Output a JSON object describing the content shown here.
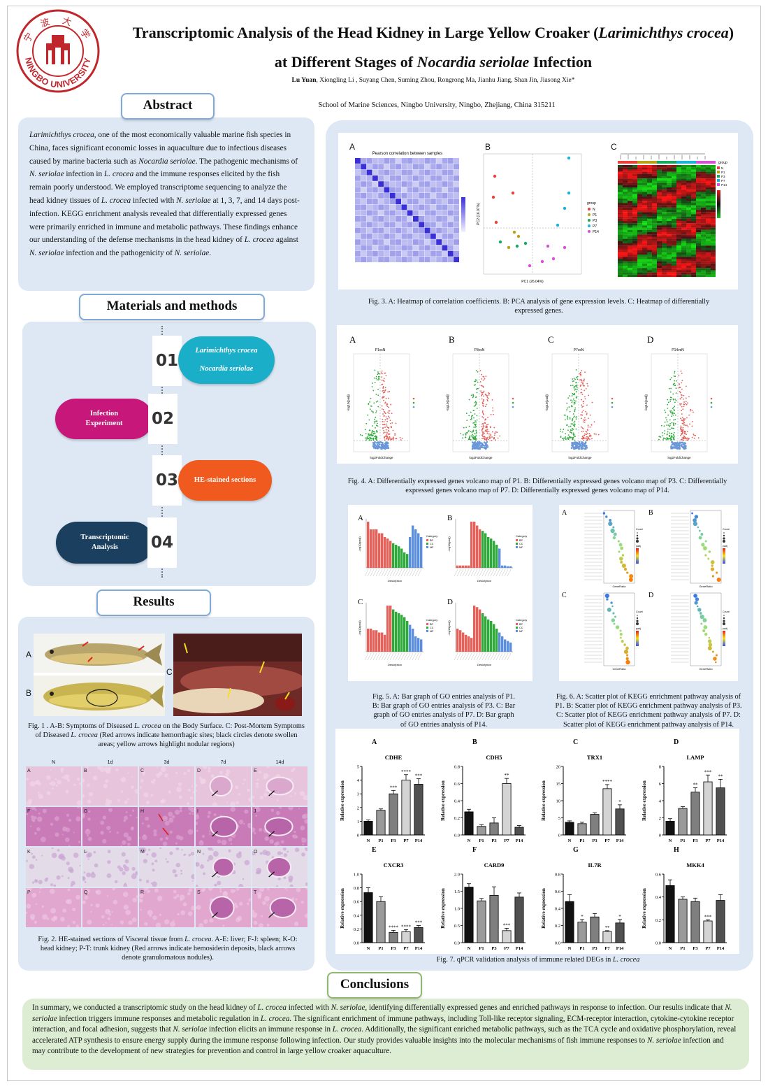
{
  "header": {
    "title_line1_a": "Transcriptomic Analysis of the Head Kidney in Large Yellow Croaker (",
    "title_line1_italic": "Larimichthys crocea",
    "title_line1_b": ")",
    "title_line2_a": "at Different Stages of ",
    "title_line2_italic": "Nocardia seriolae",
    "title_line2_b": " Infection",
    "first_author": "Lu Yuan",
    "other_authors": ", Xiongling Li , Suyang Chen, Suming Zhou, Rongrong Ma, Jianhu Jiang, Shan Jin, Jiasong Xie*",
    "affiliation": "School of Marine Sciences, Ningbo University, Ningbo, Zhejiang, China 315211",
    "logo_text": "NINGBO UNIVERSITY",
    "logo_chinese": "宁 波 大 学"
  },
  "sections": {
    "abstract": "Abstract",
    "methods": "Materials and methods",
    "results": "Results",
    "conclusions": "Conclusions"
  },
  "abstract": {
    "p1_italic": "Larimichthys crocea",
    "p1": ", one of the most economically valuable marine fish species in China, faces significant economic losses in aquaculture due to infectious diseases caused by marine bacteria such as ",
    "p2_italic": "Nocardia seriolae",
    "p2": ". The pathogenic mechanisms of ",
    "p3_italic": "N. seriolae",
    "p3": " infection in ",
    "p4_italic": "L. crocea",
    "p4": " and the immune responses elicited by the fish remain poorly understood. We employed transcriptome sequencing to analyze the head kidney tissues of ",
    "p5_italic": "L. crocea",
    "p5": " infected with ",
    "p6_italic": "N. seriolae",
    "p6": " at 1, 3, 7, and 14 days post-infection. KEGG enrichment analysis revealed that differentially expressed genes were primarily enriched in immune and metabolic pathways. These findings enhance our understanding of the defense mechanisms in the head kidney of ",
    "p7_italic": "L. crocea",
    "p7": " against ",
    "p8_italic": "N. seriolae",
    "p8": " infection and the pathogenicity of ",
    "p9_italic": "N. seriolae",
    "p9": "."
  },
  "methods": {
    "steps": [
      {
        "num": "01",
        "label_a": "Larimichthys crocea",
        "label_b": "Nocardia seriolae",
        "color": "#1aaec8"
      },
      {
        "num": "02",
        "label_a": "Infection",
        "label_b": "Experiment",
        "color": "#c8177a"
      },
      {
        "num": "03",
        "label_a": "HE-stained sections",
        "label_b": "",
        "color": "#f05a1e"
      },
      {
        "num": "04",
        "label_a": "Transcriptomic",
        "label_b": "Analysis",
        "color": "#1b3f5e"
      }
    ]
  },
  "fig1": {
    "labels": [
      "A",
      "B",
      "C"
    ],
    "caption_a": "Fig. 1 . A-B: Symptoms of Diseased ",
    "caption_i1": "L. crocea",
    "caption_b": " on the Body Surface.  C: Post-Mortem Symptoms of Diseased ",
    "caption_i2": "L. crocea",
    "caption_c": " (Red arrows indicate hemorrhagic sites; black circles denote swollen areas; yellow arrows highlight nodular regions)"
  },
  "fig2": {
    "col_headers": [
      "N",
      "1d",
      "3d",
      "7d",
      "14d"
    ],
    "cell_labels": [
      "A",
      "B",
      "C",
      "D",
      "E",
      "F",
      "G",
      "H",
      "I",
      "J",
      "K",
      "L",
      "M",
      "N",
      "O",
      "P",
      "Q",
      "R",
      "S",
      "T"
    ],
    "caption_a": "Fig. 2. HE-stained sections of Visceral tissue from ",
    "caption_i": "L. crocea",
    "caption_b": ".  A-E: liver;  F-J: spleen;  K-O: head kidney;  P-T: trunk kidney (Red arrows indicate hemosiderin deposits, black arrows denote granulomatous nodules)."
  },
  "fig3": {
    "labels": [
      "A",
      "B",
      "C"
    ],
    "heat_title": "Pearson correlation between samples",
    "pca_xlabel": "PC1 (26.04%)",
    "pca_ylabel": "PC2 (16.07%)",
    "legend_title": "group",
    "groups": [
      "N",
      "P1",
      "P3",
      "P7",
      "P14"
    ],
    "caption": "Fig. 3. A: Heatmap of correlation coefficients. B: PCA analysis of gene expression levels. C: Heatmap of differentially expressed genes."
  },
  "fig4": {
    "labels": [
      "A",
      "B",
      "C",
      "D"
    ],
    "subtitles": [
      "P1vsN",
      "P3vsN",
      "P7vsN",
      "P14vsN"
    ],
    "xlabel": "log2FoldChange",
    "ylabel": "-log10(padj)",
    "caption": "Fig. 4. A: Differentially expressed genes volcano map of P1. B: Differentially expressed genes volcano map of P3. C: Differentially expressed genes volcano map of P7. D: Differentially expressed genes volcano map of P14."
  },
  "fig5": {
    "labels": [
      "A",
      "B",
      "C",
      "D"
    ],
    "xlabel": "Description",
    "ylabel": "-log10(padj)",
    "legend_title": "Category",
    "categories": [
      "BP",
      "CC",
      "MF"
    ],
    "caption": "Fig. 5. A: Bar graph of GO entries analysis of P1. B: Bar graph of GO entries analysis of P3. C: Bar graph of GO entries analysis of P7. D: Bar graph of GO entries analysis of P14."
  },
  "fig6": {
    "labels": [
      "A",
      "B",
      "C",
      "D"
    ],
    "xlabel": "GeneRatio",
    "legend_count": "Count",
    "legend_padj": "padj",
    "caption": "Fig. 6. A: Scatter plot of KEGG enrichment pathway analysis of P1. B: Scatter plot of KEGG enrichment pathway analysis of P3. C: Scatter plot of KEGG enrichment pathway analysis of P7. D: Scatter plot of KEGG enrichment pathway analysis of P14."
  },
  "fig7": {
    "caption_a": "Fig. 7. qPCR validation analysis of  immune related DEGs in ",
    "caption_i": "L. crocea",
    "caption_b": "",
    "ylabel": "Relative expression"
  },
  "chart_data": [
    {
      "type": "bar",
      "panel": "A",
      "title": "CDHE",
      "categories": [
        "N",
        "P1",
        "P3",
        "P7",
        "P14"
      ],
      "values": [
        1.0,
        1.8,
        3.0,
        4.0,
        3.7
      ],
      "errors": [
        0.1,
        0.1,
        0.25,
        0.4,
        0.4
      ],
      "sig": [
        "",
        "",
        "***",
        "****",
        "***"
      ],
      "ylim": [
        0,
        5
      ],
      "ticks": [
        0,
        1,
        2,
        3,
        4,
        5
      ],
      "tick_labels": [
        "0",
        "1",
        "2",
        "3",
        "4",
        "5"
      ],
      "ylabel": "Relative expression"
    },
    {
      "type": "bar",
      "panel": "B",
      "title": "CDH5",
      "categories": [
        "N",
        "P1",
        "P3",
        "P7",
        "P14"
      ],
      "values": [
        0.27,
        0.1,
        0.14,
        0.6,
        0.09
      ],
      "errors": [
        0.03,
        0.02,
        0.06,
        0.06,
        0.02
      ],
      "sig": [
        "",
        "",
        "",
        "**",
        ""
      ],
      "ylim": [
        0,
        0.8
      ],
      "ticks": [
        0,
        0.2,
        0.4,
        0.6,
        0.8
      ],
      "tick_labels": [
        "0.0",
        "0.2",
        "0.4",
        "0.6",
        "0.8"
      ],
      "ylabel": "Relative expression"
    },
    {
      "type": "bar",
      "panel": "C",
      "title": "TRX1",
      "categories": [
        "N",
        "P1",
        "P3",
        "P7",
        "P14"
      ],
      "values": [
        3.7,
        3.3,
        6.0,
        13.5,
        7.6
      ],
      "errors": [
        0.4,
        0.4,
        0.5,
        1.2,
        1.2
      ],
      "sig": [
        "",
        "",
        "",
        "****",
        "*"
      ],
      "ylim": [
        0,
        20
      ],
      "ticks": [
        0,
        5,
        10,
        15,
        20
      ],
      "tick_labels": [
        "0",
        "5",
        "10",
        "15",
        "20"
      ],
      "ylabel": "Relative expression"
    },
    {
      "type": "bar",
      "panel": "D",
      "title": "LAMP",
      "categories": [
        "N",
        "P1",
        "P3",
        "P7",
        "P14"
      ],
      "values": [
        1.6,
        3.1,
        5.0,
        6.2,
        5.5
      ],
      "errors": [
        0.3,
        0.2,
        0.5,
        0.8,
        1.0
      ],
      "sig": [
        "",
        "",
        "**",
        "***",
        "**"
      ],
      "ylim": [
        0,
        8
      ],
      "ticks": [
        0,
        2,
        4,
        6,
        8
      ],
      "tick_labels": [
        "0",
        "2",
        "4",
        "6",
        "8"
      ],
      "ylabel": "Relative expression"
    },
    {
      "type": "bar",
      "panel": "E",
      "title": "CXCR3",
      "categories": [
        "N",
        "P1",
        "P3",
        "P7",
        "P14"
      ],
      "values": [
        0.73,
        0.6,
        0.15,
        0.16,
        0.22
      ],
      "errors": [
        0.07,
        0.07,
        0.03,
        0.03,
        0.03
      ],
      "sig": [
        "",
        "",
        "****",
        "****",
        "***"
      ],
      "ylim": [
        0,
        1.0
      ],
      "ticks": [
        0,
        0.2,
        0.4,
        0.6,
        0.8,
        1.0
      ],
      "tick_labels": [
        "0.0",
        "0.2",
        "0.4",
        "0.6",
        "0.8",
        "1.0"
      ],
      "ylabel": "Relative expression"
    },
    {
      "type": "bar",
      "panel": "F",
      "title": "CARD9",
      "categories": [
        "N",
        "P1",
        "P3",
        "P7",
        "P14"
      ],
      "values": [
        1.62,
        1.22,
        1.38,
        0.35,
        1.33
      ],
      "errors": [
        0.1,
        0.07,
        0.25,
        0.07,
        0.12
      ],
      "sig": [
        "",
        "",
        "",
        "***",
        ""
      ],
      "ylim": [
        0,
        2.0
      ],
      "ticks": [
        0,
        0.5,
        1.0,
        1.5,
        2.0
      ],
      "tick_labels": [
        "0.0",
        "0.5",
        "1.0",
        "1.5",
        "2.0"
      ],
      "ylabel": "Relative expression"
    },
    {
      "type": "bar",
      "panel": "G",
      "title": "IL7R",
      "categories": [
        "N",
        "P1",
        "P3",
        "P7",
        "P14"
      ],
      "values": [
        0.48,
        0.24,
        0.3,
        0.13,
        0.23
      ],
      "errors": [
        0.08,
        0.03,
        0.04,
        0.01,
        0.04
      ],
      "sig": [
        "",
        "*",
        "",
        "**",
        "*"
      ],
      "ylim": [
        0,
        0.8
      ],
      "ticks": [
        0,
        0.2,
        0.4,
        0.6,
        0.8
      ],
      "tick_labels": [
        "0.0",
        "0.2",
        "0.4",
        "0.6",
        "0.8"
      ],
      "ylabel": "Relative expression"
    },
    {
      "type": "bar",
      "panel": "H",
      "title": "MKK4",
      "categories": [
        "N",
        "P1",
        "P3",
        "P7",
        "P14"
      ],
      "values": [
        0.5,
        0.38,
        0.36,
        0.19,
        0.37
      ],
      "errors": [
        0.05,
        0.02,
        0.03,
        0.01,
        0.05
      ],
      "sig": [
        "",
        "",
        "",
        "***",
        ""
      ],
      "ylim": [
        0,
        0.6
      ],
      "ticks": [
        0,
        0.2,
        0.4,
        0.6
      ],
      "tick_labels": [
        "0.0",
        "0.2",
        "0.4",
        "0.6"
      ],
      "ylabel": "Relative expression"
    }
  ],
  "conclusions": {
    "text_a": "In summary, we conducted a transcriptomic study on the head kidney of ",
    "i1": "L. crocea",
    "text_b": " infected with ",
    "i2": "N. seriolae",
    "text_c": ", identifying differentially expressed genes and enriched pathways in response to infection. Our results indicate that ",
    "i3": "N. seriolae",
    "text_d": " infection triggers immune responses and metabolic regulation in ",
    "i4": "L. crocea.",
    "text_e": " The significant enrichment of immune pathways, including Toll-like receptor signaling, ECM-receptor interaction, cytokine-cytokine receptor interaction, and focal adhesion, suggests that ",
    "i5": "N. seriolae",
    "text_f": " infection elicits an immune response in ",
    "i6": "L. crocea",
    "text_g": ". Additionally, the significant enriched metabolic pathways, such as the TCA cycle and oxidative phosphorylation, reveal accelerated ATP synthesis to ensure energy supply during the immune response following infection. Our study provides valuable insights into the molecular mechanisms of fish immune responses to ",
    "i7": "N. seriolae",
    "text_h": " infection and may contribute to the development of new strategies for prevention and control in large yellow croaker aquaculture."
  },
  "colors": {
    "panel_blue": "#dde8f4",
    "conclusion_green": "#dcedd4",
    "heading_border": "#7fa9d8",
    "logo_red": "#c0272d"
  }
}
